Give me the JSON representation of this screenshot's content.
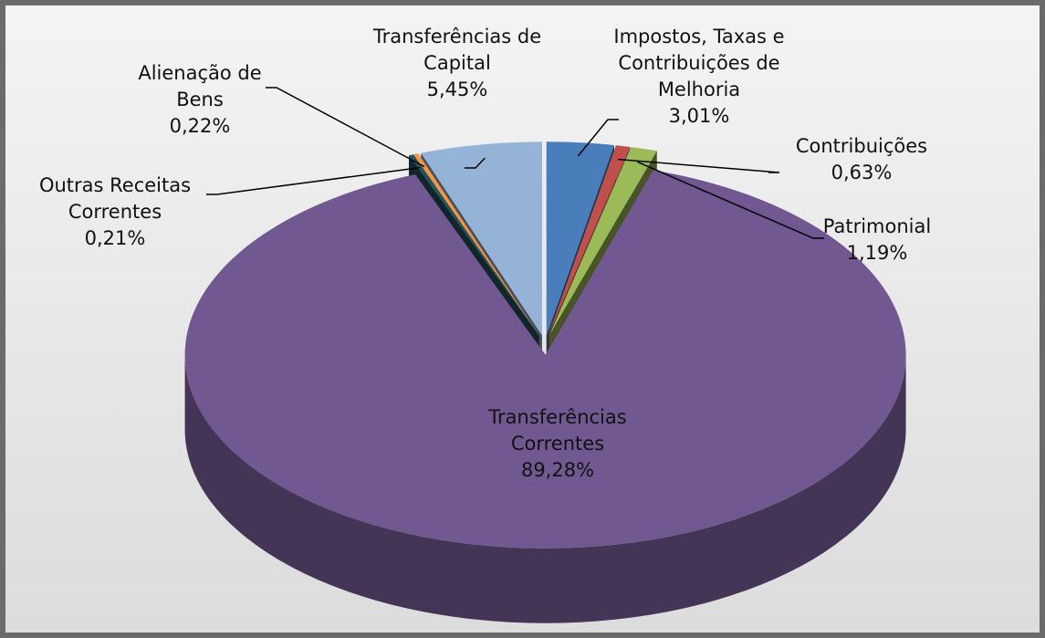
{
  "chart_data": {
    "type": "pie",
    "categories": [
      "Impostos, Taxas e Contribuições de Melhoria",
      "Contribuições",
      "Patrimonial",
      "Transferências Correntes",
      "Outras Receitas Correntes",
      "Alienação de Bens",
      "Transferências de Capital"
    ],
    "values": [
      3.01,
      0.63,
      1.19,
      89.28,
      0.21,
      0.22,
      5.45
    ],
    "value_labels": [
      "3,01%",
      "0,63%",
      "1,19%",
      "89,28%",
      "0,21%",
      "0,22%",
      "5,45%"
    ],
    "colors": [
      "#4a7ebb",
      "#c0504d",
      "#9bbb59",
      "#725891",
      "#23545e",
      "#f79646",
      "#95b3d7"
    ]
  }
}
